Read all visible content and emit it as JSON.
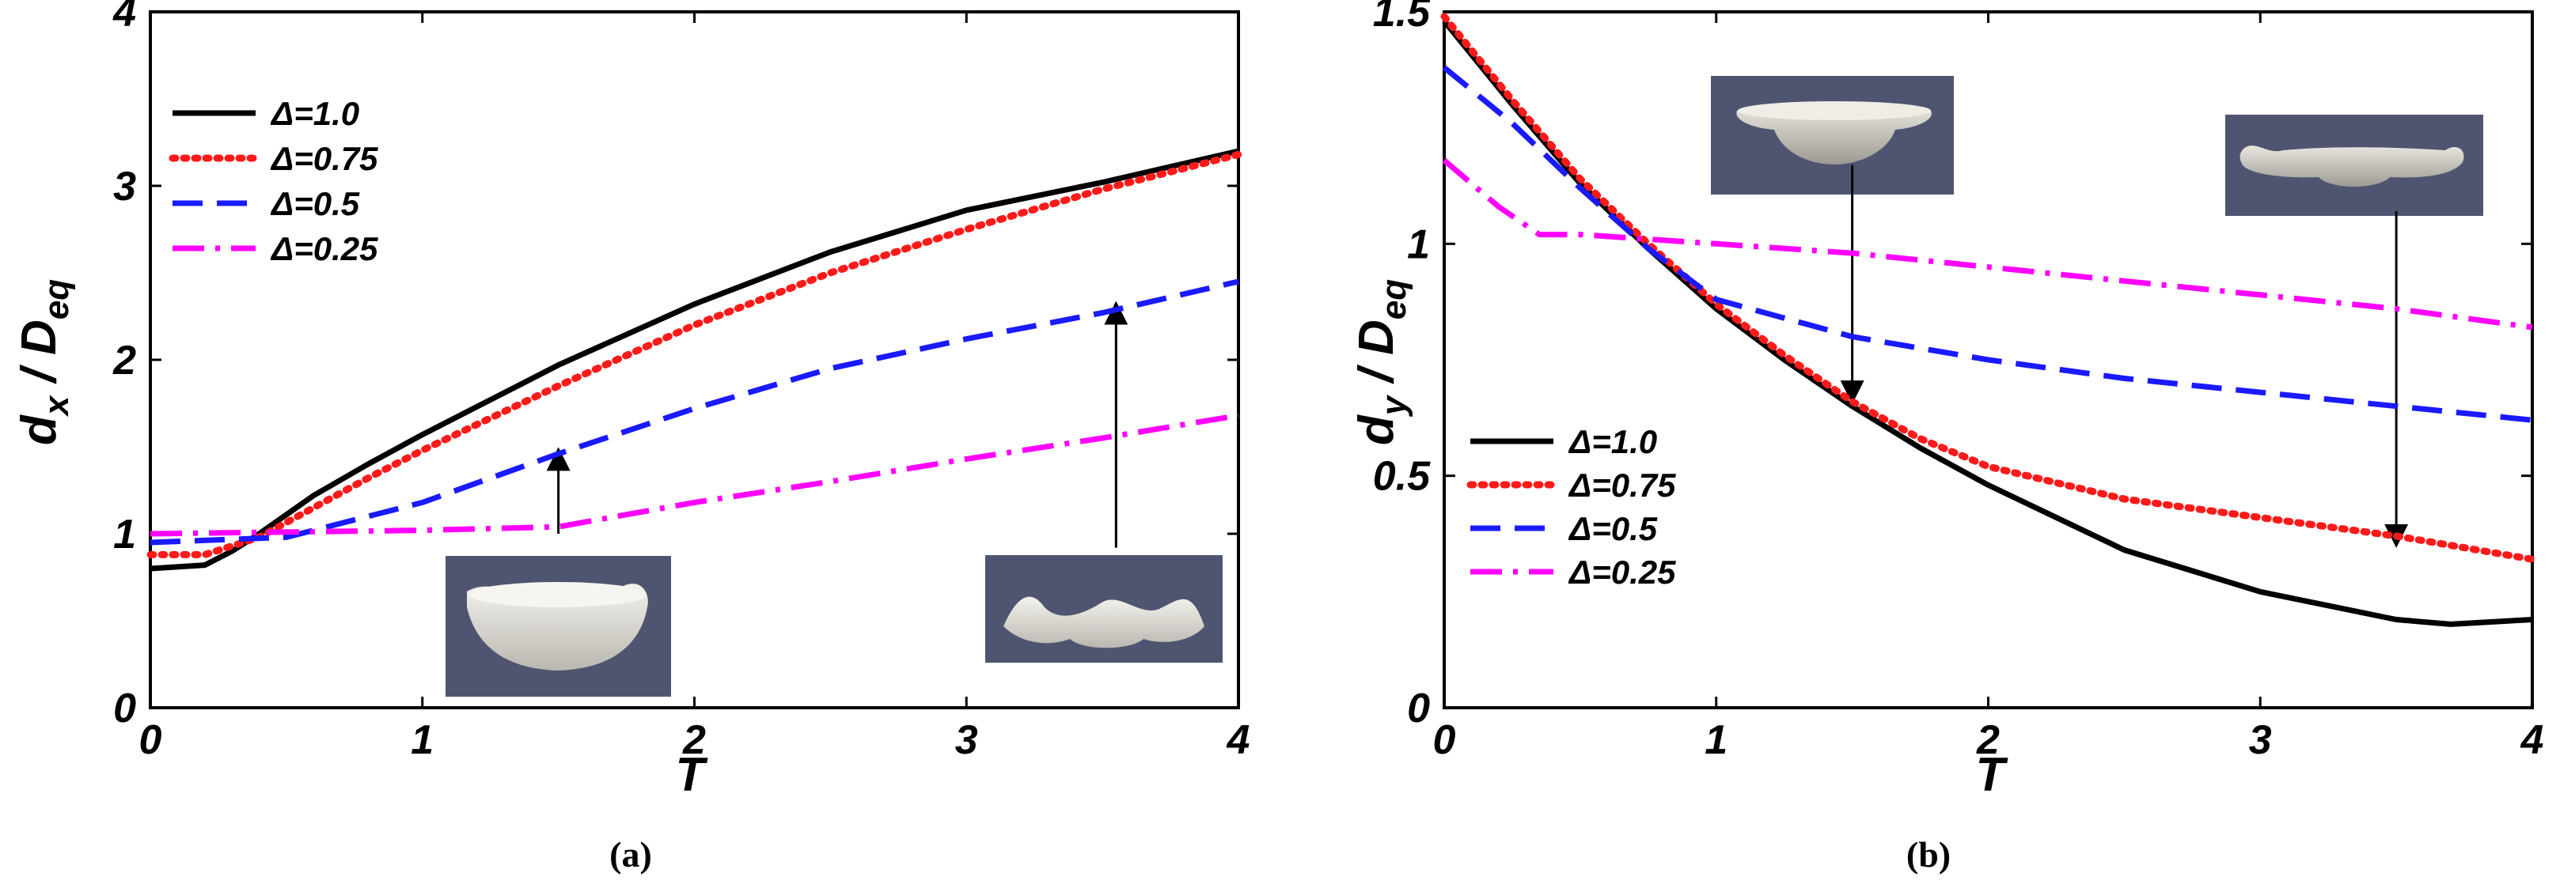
{
  "chart_data": [
    {
      "type": "line",
      "panel": "a",
      "caption": "(a)",
      "xlabel": "T",
      "ylabel": "d_x / D_eq",
      "ylabel_main": "d",
      "ylabel_sub": "x",
      "ylabel_rest": " / D",
      "ylabel_sub2": "eq",
      "xlim": [
        0,
        4
      ],
      "ylim": [
        0,
        4
      ],
      "xticks": [
        "0",
        "1",
        "2",
        "3",
        "4"
      ],
      "yticks": [
        "0",
        "1",
        "2",
        "3",
        "4"
      ],
      "legend_position": "top-left",
      "series": [
        {
          "name": "Δ=1.0",
          "color": "#000000",
          "style": "solid",
          "x": [
            0,
            0.2,
            0.3,
            0.4,
            0.6,
            0.8,
            1.0,
            1.5,
            2.0,
            2.5,
            3.0,
            3.5,
            4.0
          ],
          "y": [
            0.8,
            0.82,
            0.9,
            1.0,
            1.22,
            1.4,
            1.57,
            1.97,
            2.32,
            2.62,
            2.86,
            3.02,
            3.2
          ]
        },
        {
          "name": "Δ=0.75",
          "color": "#ff1a1a",
          "style": "dotted",
          "x": [
            0,
            0.2,
            0.4,
            0.6,
            0.8,
            1.0,
            1.5,
            2.0,
            2.5,
            3.0,
            3.5,
            4.0
          ],
          "y": [
            0.88,
            0.88,
            0.98,
            1.15,
            1.32,
            1.48,
            1.85,
            2.2,
            2.5,
            2.75,
            2.98,
            3.18
          ]
        },
        {
          "name": "Δ=0.5",
          "color": "#1a1aff",
          "style": "dashed",
          "x": [
            0,
            0.5,
            1.0,
            1.5,
            2.0,
            2.5,
            3.0,
            3.5,
            4.0
          ],
          "y": [
            0.95,
            0.98,
            1.18,
            1.46,
            1.72,
            1.95,
            2.12,
            2.27,
            2.45
          ]
        },
        {
          "name": "Δ=0.25",
          "color": "#ff00ff",
          "style": "dashdot",
          "x": [
            0,
            0.5,
            1.0,
            1.5,
            2.0,
            2.5,
            3.0,
            3.5,
            4.0
          ],
          "y": [
            1.0,
            1.01,
            1.02,
            1.04,
            1.18,
            1.3,
            1.43,
            1.55,
            1.68
          ]
        }
      ],
      "annotations": [
        {
          "from": [
            1.5,
            1.0
          ],
          "to": [
            1.5,
            1.43
          ]
        },
        {
          "from": [
            3.55,
            0.92
          ],
          "to": [
            3.55,
            2.27
          ]
        }
      ]
    },
    {
      "type": "line",
      "panel": "b",
      "caption": "(b)",
      "xlabel": "T",
      "ylabel": "d_y / D_eq",
      "ylabel_main": "d",
      "ylabel_sub": "y",
      "ylabel_rest": " / D",
      "ylabel_sub2": "eq",
      "xlim": [
        0,
        4
      ],
      "ylim": [
        0,
        1.5
      ],
      "xticks": [
        "0",
        "1",
        "2",
        "3",
        "4"
      ],
      "yticks": [
        "0",
        "0.5",
        "1",
        "1.5"
      ],
      "legend_position": "bottom-left",
      "series": [
        {
          "name": "Δ=1.0",
          "color": "#000000",
          "style": "solid",
          "x": [
            0,
            0.25,
            0.5,
            0.75,
            1.0,
            1.25,
            1.5,
            1.75,
            2.0,
            2.5,
            3.0,
            3.5,
            3.7,
            4.0
          ],
          "y": [
            1.48,
            1.3,
            1.13,
            0.99,
            0.86,
            0.75,
            0.65,
            0.56,
            0.48,
            0.34,
            0.25,
            0.19,
            0.18,
            0.19
          ]
        },
        {
          "name": "Δ=0.75",
          "color": "#ff1a1a",
          "style": "dotted",
          "x": [
            0,
            0.25,
            0.5,
            0.75,
            1.0,
            1.25,
            1.5,
            1.75,
            2.0,
            2.5,
            3.0,
            3.5,
            4.0
          ],
          "y": [
            1.49,
            1.31,
            1.14,
            1.0,
            0.87,
            0.76,
            0.66,
            0.58,
            0.52,
            0.45,
            0.41,
            0.37,
            0.32
          ]
        },
        {
          "name": "Δ=0.5",
          "color": "#1a1aff",
          "style": "dashed",
          "x": [
            0,
            0.25,
            0.5,
            0.75,
            1.0,
            1.25,
            1.5,
            2.0,
            2.5,
            3.0,
            3.5,
            4.0
          ],
          "y": [
            1.38,
            1.26,
            1.12,
            0.99,
            0.88,
            0.84,
            0.8,
            0.75,
            0.71,
            0.68,
            0.65,
            0.62
          ]
        },
        {
          "name": "Δ=0.25",
          "color": "#ff00ff",
          "style": "dashdot",
          "x": [
            0,
            0.2,
            0.35,
            0.5,
            1.0,
            1.5,
            2.0,
            2.5,
            3.0,
            3.5,
            4.0
          ],
          "y": [
            1.18,
            1.08,
            1.02,
            1.02,
            1.0,
            0.98,
            0.95,
            0.92,
            0.89,
            0.86,
            0.82
          ]
        }
      ],
      "annotations": [
        {
          "from": [
            1.5,
            1.17
          ],
          "to": [
            1.5,
            0.68
          ]
        },
        {
          "from": [
            3.5,
            1.07
          ],
          "to": [
            3.5,
            0.37
          ]
        }
      ]
    }
  ]
}
